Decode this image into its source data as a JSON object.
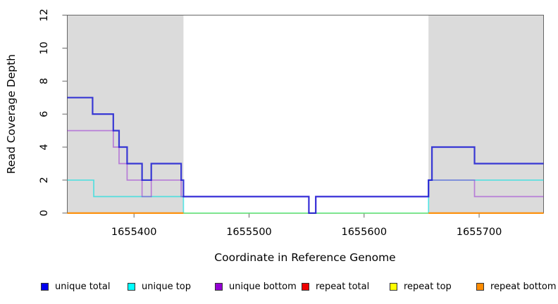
{
  "chart_data": {
    "type": "line",
    "subtype": "step-coverage",
    "title": "",
    "xlabel": "Coordinate in Reference Genome",
    "ylabel": "Read Coverage Depth",
    "xlim": [
      1655342,
      1655756
    ],
    "ylim": [
      0,
      12
    ],
    "x_ticks": [
      1655400,
      1655500,
      1655600,
      1655700
    ],
    "x_tick_labels": [
      "1655400",
      "1655500",
      "1655600",
      "1655700"
    ],
    "y_ticks": [
      0,
      2,
      4,
      6,
      8,
      10,
      12
    ],
    "y_tick_labels": [
      "0",
      "2",
      "4",
      "6",
      "8",
      "10",
      "12"
    ],
    "grid": false,
    "legend_position": "bottom",
    "masked_region_color": "#DBDBDB",
    "masked_regions": [
      [
        1655342,
        1655443
      ],
      [
        1655656,
        1655756
      ]
    ],
    "series": [
      {
        "name": "unique total",
        "color": "#1414D2",
        "alpha": 0.82,
        "width": 2.2,
        "steps": [
          [
            1655342,
            7
          ],
          [
            1655364,
            6
          ],
          [
            1655382,
            5
          ],
          [
            1655387,
            4
          ],
          [
            1655394,
            3
          ],
          [
            1655407,
            2
          ],
          [
            1655415,
            3
          ],
          [
            1655441,
            2
          ],
          [
            1655443,
            1
          ],
          [
            1655552,
            0
          ],
          [
            1655558,
            1
          ],
          [
            1655656,
            2
          ],
          [
            1655659,
            4
          ],
          [
            1655696,
            3
          ]
        ]
      },
      {
        "name": "unique top",
        "color": "#00E0E0",
        "alpha": 0.62,
        "width": 1.7,
        "steps": [
          [
            1655342,
            2
          ],
          [
            1655365,
            1
          ],
          [
            1655443,
            0
          ],
          [
            1655656,
            2
          ]
        ]
      },
      {
        "name": "unique bottom",
        "color": "#9420D3",
        "alpha": 0.5,
        "width": 1.7,
        "steps": [
          [
            1655342,
            5
          ],
          [
            1655382,
            4
          ],
          [
            1655387,
            3
          ],
          [
            1655394,
            2
          ],
          [
            1655407,
            1
          ],
          [
            1655415,
            2
          ],
          [
            1655441,
            1
          ],
          [
            1655552,
            0
          ],
          [
            1655558,
            1
          ],
          [
            1655656,
            2
          ],
          [
            1655696,
            1
          ]
        ]
      },
      {
        "name": "repeat total",
        "color": "#CD0000",
        "alpha": 1,
        "width": 1.7,
        "steps": [
          [
            1655342,
            0
          ]
        ]
      },
      {
        "name": "repeat top",
        "color": "#FFFF00",
        "alpha": 1,
        "width": 1.7,
        "steps": [
          [
            1655342,
            0
          ]
        ]
      },
      {
        "name": "repeat bottom",
        "color": "#FF8C00",
        "alpha": 1,
        "width": 2,
        "steps": [
          [
            1655342,
            0
          ],
          [
            1655443,
            null
          ],
          [
            1655656,
            0
          ]
        ]
      }
    ],
    "draw_order": [
      3,
      4,
      1,
      2,
      0,
      5
    ],
    "legend": [
      {
        "label": "unique total",
        "color": "#0000EE"
      },
      {
        "label": "unique top",
        "color": "#00FFFF"
      },
      {
        "label": "unique bottom",
        "color": "#9400D3"
      },
      {
        "label": "repeat total",
        "color": "#EE0000"
      },
      {
        "label": "repeat top",
        "color": "#FFFF00"
      },
      {
        "label": "repeat bottom",
        "color": "#FF8C00"
      }
    ]
  }
}
